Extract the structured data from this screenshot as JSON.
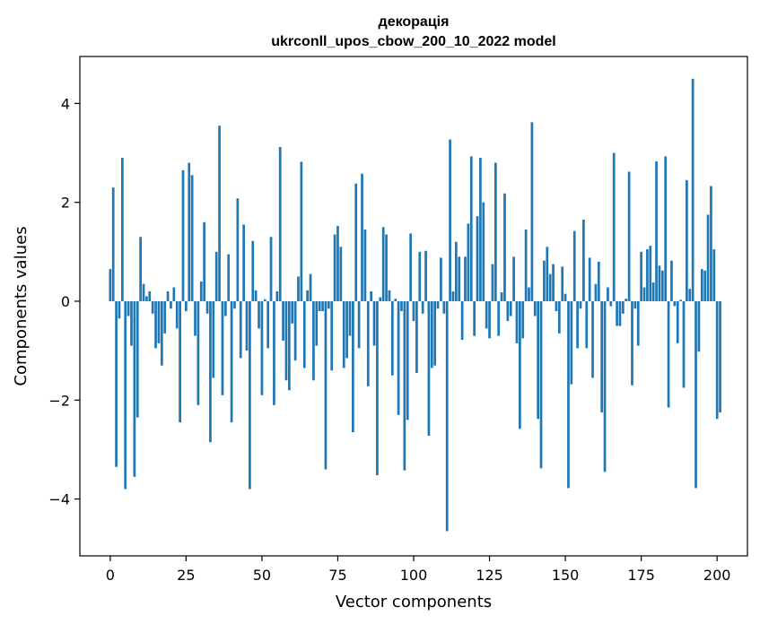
{
  "chart_data": {
    "type": "bar",
    "title_line1": "декорація",
    "title_line2": "ukrconll_upos_cbow_200_10_2022 model",
    "xlabel": "Vector components",
    "ylabel": "Components values",
    "xlim": [
      -10,
      210
    ],
    "ylim": [
      -5.15,
      4.95
    ],
    "xticks": [
      0,
      25,
      50,
      75,
      100,
      125,
      150,
      175,
      200
    ],
    "xtick_labels": [
      "0",
      "25",
      "50",
      "75",
      "100",
      "125",
      "150",
      "175",
      "200"
    ],
    "yticks": [
      -4,
      -2,
      0,
      2,
      4
    ],
    "ytick_labels": [
      "−4",
      "−2",
      "0",
      "2",
      "4"
    ],
    "bar_color": "#1f77b4",
    "grid": false,
    "legend": "none",
    "values": [
      0.65,
      2.3,
      -3.35,
      -0.35,
      2.9,
      -3.8,
      -0.3,
      -0.9,
      -3.55,
      -2.35,
      1.3,
      0.35,
      0.1,
      0.2,
      -0.25,
      -0.95,
      -0.85,
      -1.3,
      -0.65,
      0.2,
      -0.15,
      0.28,
      -0.55,
      -2.45,
      2.65,
      -0.2,
      2.8,
      2.55,
      -0.7,
      -2.1,
      0.4,
      1.6,
      -0.25,
      -2.85,
      -1.55,
      1.0,
      3.55,
      -1.9,
      -0.3,
      0.95,
      -2.45,
      -0.15,
      2.08,
      -1.15,
      1.55,
      -1.0,
      -3.8,
      1.22,
      0.22,
      -0.55,
      -1.9,
      0.04,
      -0.95,
      1.3,
      -2.1,
      0.2,
      3.12,
      -0.8,
      -1.6,
      -1.8,
      -0.45,
      -1.2,
      0.5,
      2.82,
      -1.35,
      0.22,
      0.55,
      -1.6,
      -0.9,
      -0.2,
      -0.2,
      -3.4,
      -0.15,
      -1.4,
      1.35,
      1.52,
      1.1,
      -1.35,
      -1.15,
      -0.7,
      -2.65,
      2.38,
      -0.95,
      2.58,
      1.45,
      -1.72,
      0.2,
      -0.9,
      -3.52,
      0.08,
      1.5,
      1.35,
      0.22,
      -1.5,
      0.05,
      -2.3,
      -0.2,
      -3.42,
      -2.4,
      1.37,
      -0.4,
      -1.45,
      1.0,
      -0.25,
      1.02,
      -2.72,
      -1.35,
      -1.3,
      -0.15,
      0.88,
      -0.25,
      -4.65,
      3.27,
      0.2,
      1.2,
      0.9,
      -0.78,
      0.9,
      1.57,
      2.93,
      -0.7,
      1.72,
      2.9,
      2.0,
      -0.55,
      -0.75,
      0.75,
      2.8,
      -0.7,
      0.18,
      2.18,
      -0.4,
      -0.3,
      0.9,
      -0.85,
      -2.58,
      -0.75,
      1.45,
      0.28,
      3.62,
      -0.3,
      -2.38,
      -3.38,
      0.82,
      1.1,
      0.55,
      0.75,
      -0.2,
      -0.65,
      0.7,
      0.15,
      -3.78,
      -1.68,
      1.42,
      -0.95,
      -0.15,
      1.65,
      -0.95,
      0.88,
      -1.55,
      0.35,
      0.8,
      -2.25,
      -3.45,
      0.28,
      -0.1,
      3.0,
      -0.5,
      -0.5,
      -0.25,
      0.05,
      2.62,
      -1.7,
      -0.15,
      -0.9,
      1.0,
      0.28,
      1.05,
      1.12,
      0.38,
      2.83,
      0.72,
      0.62,
      2.93,
      -2.15,
      0.82,
      -0.1,
      -0.85,
      0.03,
      -1.75,
      2.45,
      0.25,
      4.5,
      -3.78,
      -1.02,
      0.65,
      0.62,
      1.75,
      2.33,
      1.05,
      -2.38,
      -2.25
    ]
  }
}
